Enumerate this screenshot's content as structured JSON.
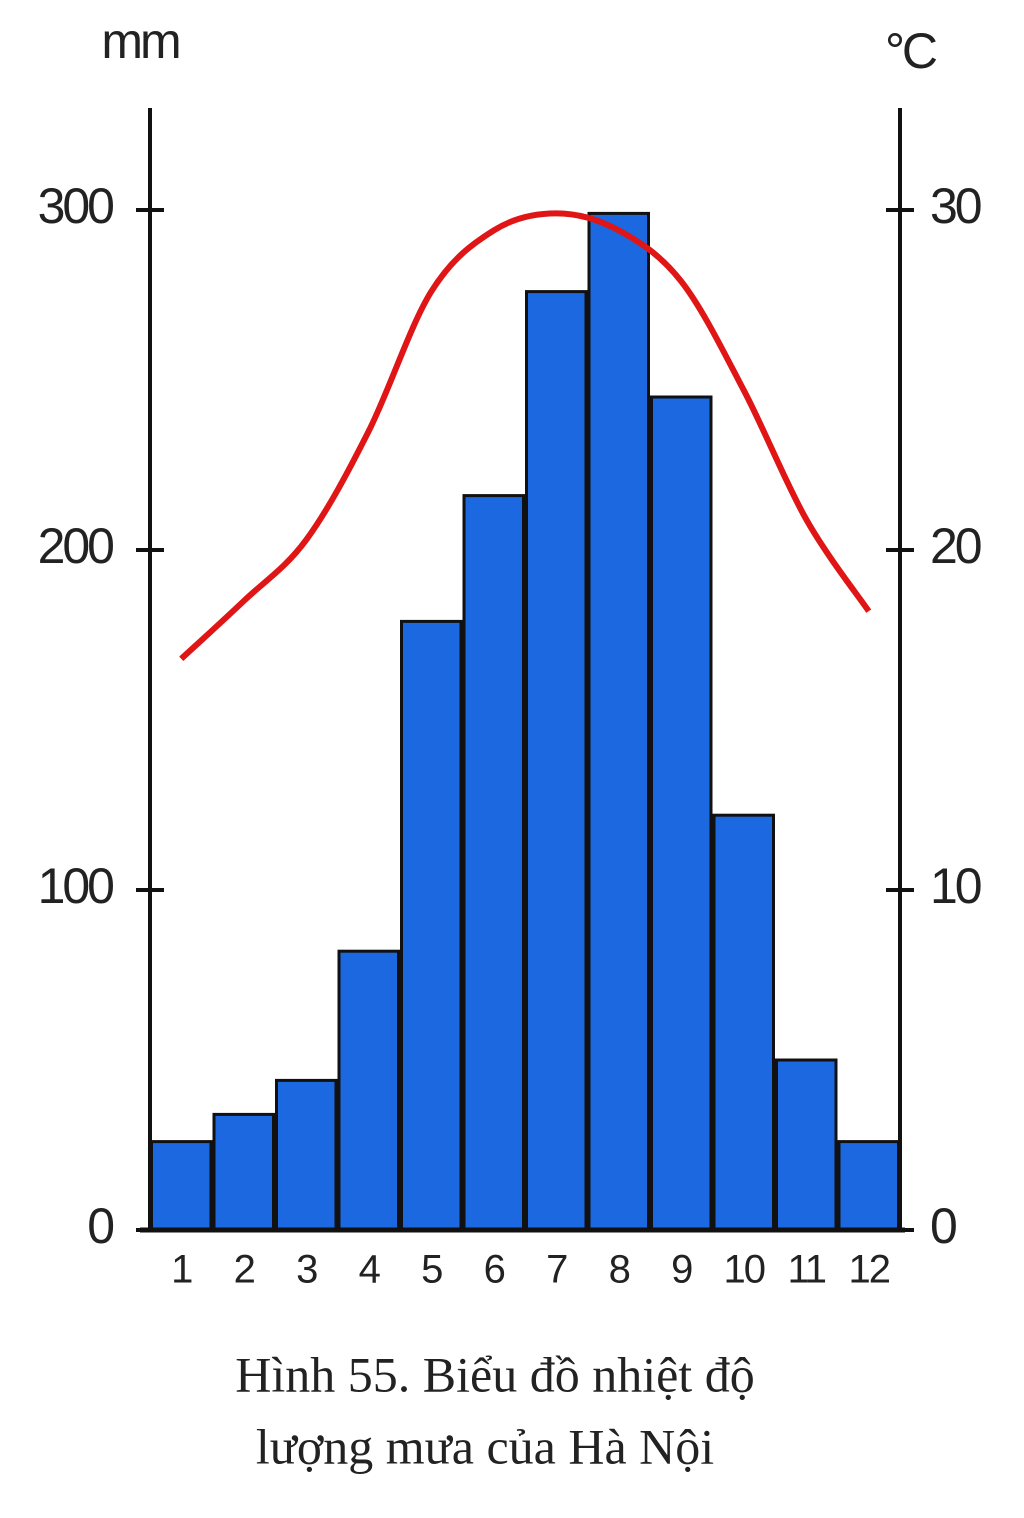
{
  "chart_data": {
    "type": "bar-line",
    "title": [
      "Hình 55. Biểu đồ nhiệt độ",
      "lượng mưa của Hà Nội"
    ],
    "y_label": "mm",
    "y2_label": "°C",
    "categories": [
      "1",
      "2",
      "3",
      "4",
      "5",
      "6",
      "7",
      "8",
      "9",
      "10",
      "11",
      "12"
    ],
    "series": [
      {
        "type": "bar",
        "color": "#1b68e0",
        "values": [
          26,
          34,
          44,
          82,
          179,
          216,
          276,
          299,
          245,
          122,
          50,
          26
        ]
      },
      {
        "type": "line",
        "axis": "y2",
        "color": "#e01515",
        "values": [
          16.8,
          18.5,
          20.3,
          23.5,
          27.6,
          29.4,
          29.9,
          29.4,
          27.9,
          24.7,
          20.9,
          18.2
        ]
      }
    ],
    "ylim": [
      0,
      330
    ],
    "yticks": [
      0,
      100,
      200,
      300
    ],
    "y2lim": [
      0,
      33
    ],
    "y2ticks": [
      0,
      10,
      20,
      30
    ]
  }
}
